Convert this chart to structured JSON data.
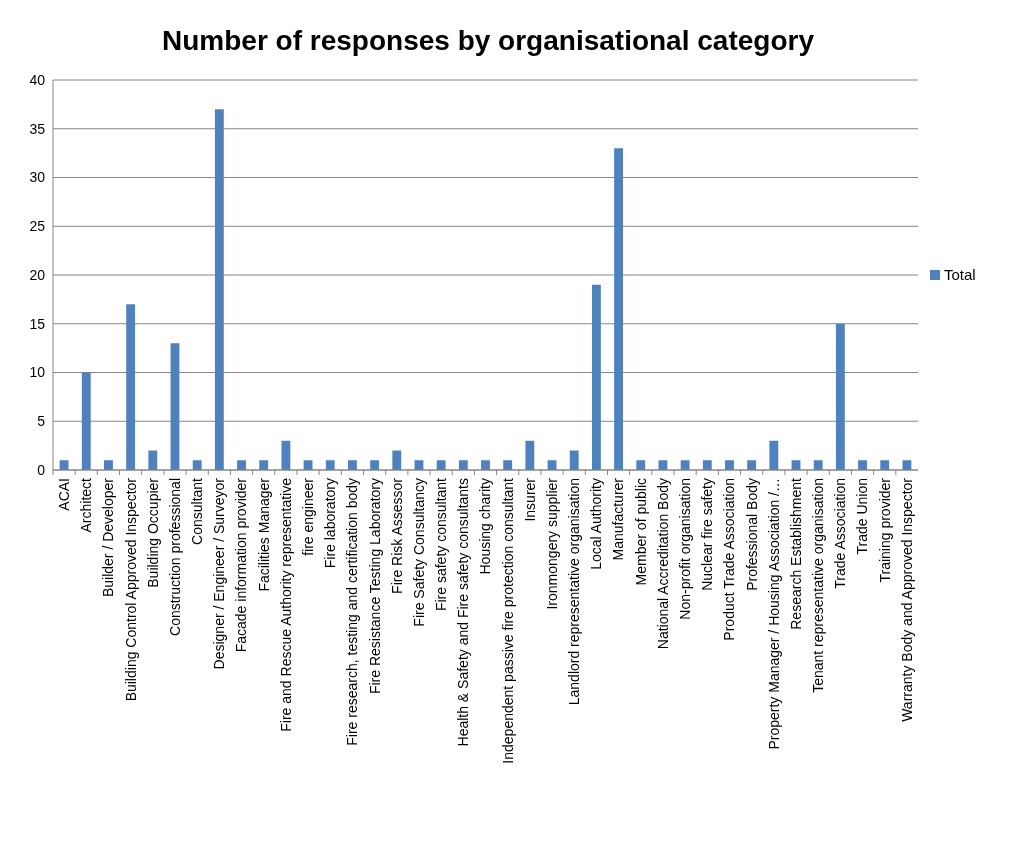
{
  "chart_data": {
    "type": "bar",
    "title": "Number of responses by organisational category",
    "categories": [
      "ACAI",
      "Architect",
      "Builder / Developer",
      "Building Control Approved Inspector",
      "Building Occupier",
      "Construction professional",
      "Consultant",
      "Designer / Engineer / Surveyor",
      "Facade information provider",
      "Facilities Manager",
      "Fire and Rescue Authority representative",
      "fire engineer",
      "Fire laboratory",
      "Fire research, testing and certification body",
      "Fire Resistance Testing Laboratory",
      "Fire Risk Assessor",
      "Fire Safety Consultancy",
      "Fire safety consultant",
      "Health & Safety and Fire safety consultants",
      "Housing charity",
      "Independent passive fire protection consultant",
      "Insurer",
      "Ironmongery supplier",
      "Landlord representative organisation",
      "Local Authority",
      "Manufacturer",
      "Member of public",
      "National Accreditation Body",
      "Non-profit organisation",
      "Nuclear fire safety",
      "Product Trade Association",
      "Professional Body",
      "Property Manager / Housing Association /…",
      "Research Establishment",
      "Tenant representative organisation",
      "Trade Association",
      "Trade Union",
      "Training provider",
      "Warranty Body and Approved Inspector"
    ],
    "series": [
      {
        "name": "Total",
        "color": "#4f81bd",
        "values": [
          1,
          10,
          1,
          17,
          2,
          13,
          1,
          37,
          1,
          1,
          3,
          1,
          1,
          1,
          1,
          2,
          1,
          1,
          1,
          1,
          1,
          3,
          1,
          2,
          19,
          33,
          1,
          1,
          1,
          1,
          1,
          1,
          3,
          1,
          1,
          15,
          1,
          1,
          1
        ]
      }
    ],
    "ylim": [
      0,
      40
    ],
    "yticks": [
      0,
      5,
      10,
      15,
      20,
      25,
      30,
      35,
      40
    ],
    "grid": "y",
    "legend": "right"
  }
}
